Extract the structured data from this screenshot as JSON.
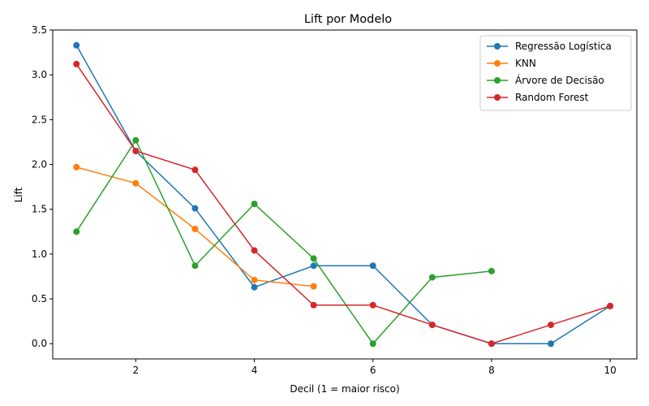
{
  "chart_data": {
    "type": "line",
    "title": "Lift por Modelo",
    "xlabel": "Decil (1 = maior risco)",
    "ylabel": "Lift",
    "xlim": [
      0.6,
      10.45
    ],
    "ylim": [
      -0.17,
      3.5
    ],
    "xticks": [
      2,
      4,
      6,
      8,
      10
    ],
    "yticks": [
      0.0,
      0.5,
      1.0,
      1.5,
      2.0,
      2.5,
      3.0,
      3.5
    ],
    "grid": false,
    "legend_position": "top-right",
    "series": [
      {
        "name": "Regressão Logística",
        "color": "#1f77b4",
        "x": [
          1,
          2,
          3,
          4,
          5,
          6,
          7,
          8,
          9,
          10
        ],
        "y": [
          3.33,
          2.15,
          1.51,
          0.63,
          0.87,
          0.87,
          0.21,
          0.0,
          0.0,
          0.42
        ]
      },
      {
        "name": "KNN",
        "color": "#ff7f0e",
        "x": [
          1,
          2,
          3,
          4,
          5
        ],
        "y": [
          1.97,
          1.79,
          1.28,
          0.71,
          0.64
        ]
      },
      {
        "name": "Árvore de Decisão",
        "color": "#2ca02c",
        "x": [
          1,
          2,
          3,
          4,
          5,
          6,
          7,
          8
        ],
        "y": [
          1.25,
          2.27,
          0.87,
          1.56,
          0.95,
          0.0,
          0.74,
          0.81
        ]
      },
      {
        "name": "Random Forest",
        "color": "#d62728",
        "x": [
          1,
          2,
          3,
          4,
          5,
          6,
          7,
          8,
          9,
          10
        ],
        "y": [
          3.12,
          2.15,
          1.94,
          1.04,
          0.43,
          0.43,
          0.21,
          0.0,
          0.21,
          0.42
        ]
      }
    ]
  }
}
